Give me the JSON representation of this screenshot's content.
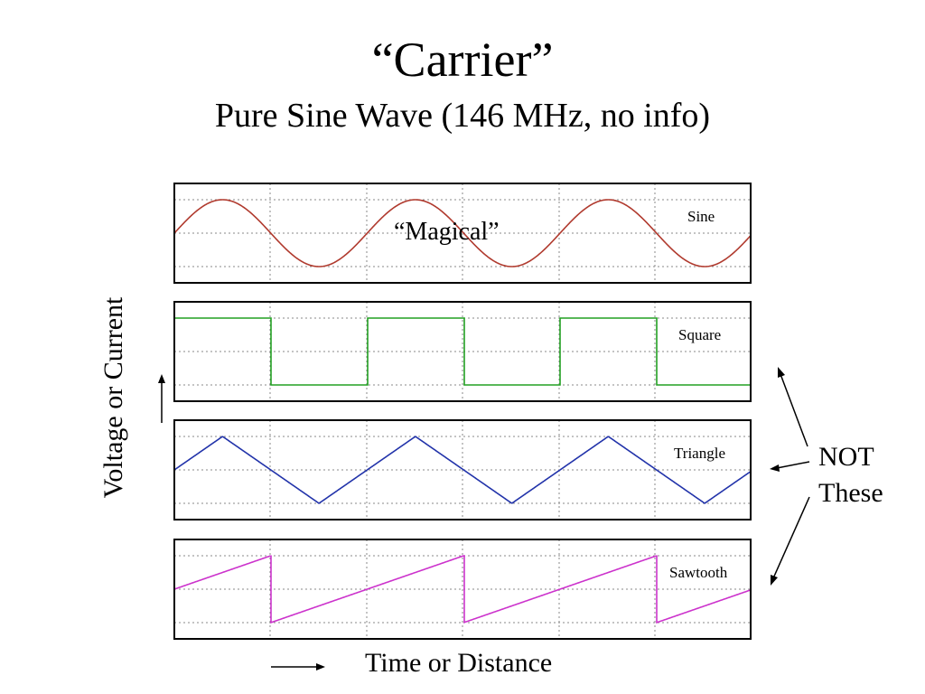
{
  "title": "“Carrier”",
  "subtitle": "Pure Sine Wave (146 MHz, no info)",
  "y_axis_label": "Voltage or Current",
  "x_axis_label": "Time or Distance",
  "annotation": {
    "line1": "NOT",
    "line2": "These"
  },
  "callout": "“Magical”",
  "waves": [
    {
      "name": "Sine",
      "shape": "sine",
      "color": "#b03a2e"
    },
    {
      "name": "Square",
      "shape": "square",
      "color": "#22a022"
    },
    {
      "name": "Triangle",
      "shape": "triangle",
      "color": "#2233aa"
    },
    {
      "name": "Sawtooth",
      "shape": "sawtooth",
      "color": "#cc33cc"
    }
  ],
  "colors": {
    "frame": "#000000",
    "grid": "#888888",
    "arrow": "#000000"
  }
}
